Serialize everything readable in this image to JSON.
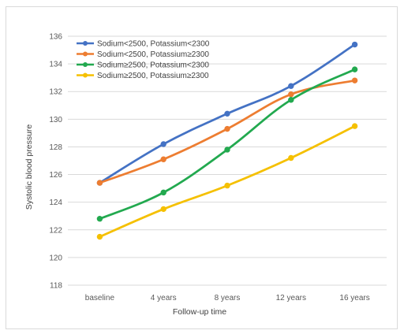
{
  "chart_data": {
    "type": "line",
    "title": "",
    "xlabel": "Follow-up time",
    "ylabel": "Systolic blood pressure",
    "categories": [
      "baseline",
      "4 years",
      "8 years",
      "12 years",
      "16 years"
    ],
    "ylim": [
      118,
      136
    ],
    "yticks": [
      118,
      120,
      122,
      124,
      126,
      128,
      130,
      132,
      134,
      136
    ],
    "grid": true,
    "legend_position": "top-left",
    "series": [
      {
        "name": "Sodium<2500, Potassium<2300",
        "color": "#4472C4",
        "values": [
          125.4,
          128.2,
          130.4,
          132.4,
          135.4
        ]
      },
      {
        "name": "Sodium<2500, Potassium≥2300",
        "color": "#ED7D31",
        "values": [
          125.4,
          127.1,
          129.3,
          131.8,
          132.8
        ]
      },
      {
        "name": "Sodium≥2500, Potassium<2300",
        "color": "#22A94F",
        "values": [
          122.8,
          124.7,
          127.8,
          131.4,
          133.6
        ]
      },
      {
        "name": "Sodium≥2500, Potassium≥2300",
        "color": "#F5C000",
        "values": [
          121.5,
          123.5,
          125.2,
          127.2,
          129.5
        ]
      }
    ]
  }
}
